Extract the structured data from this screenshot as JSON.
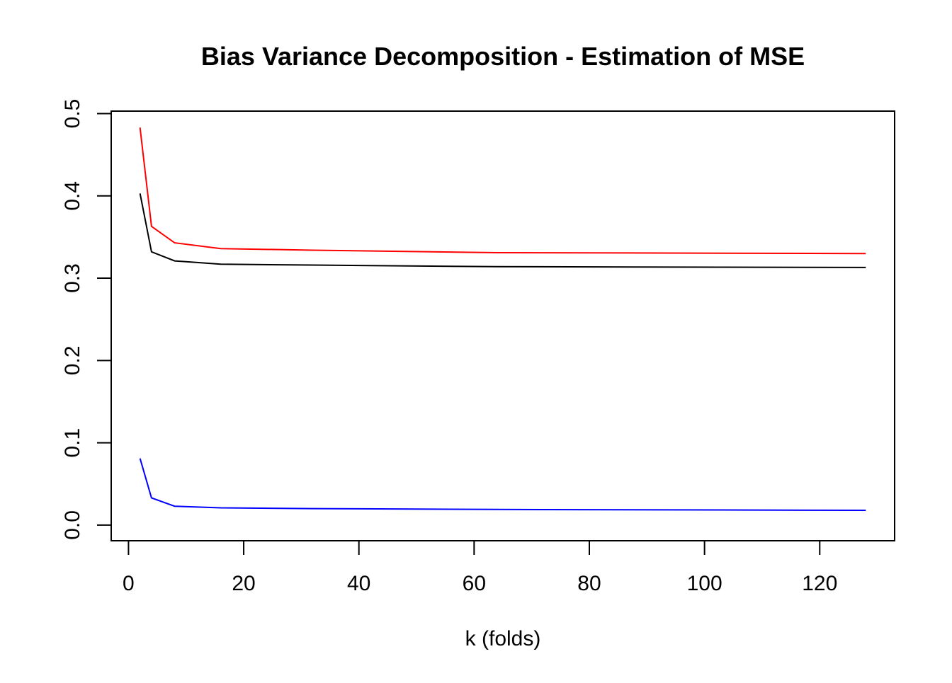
{
  "chart_data": {
    "type": "line",
    "title": "Bias Variance Decomposition - Estimation of MSE",
    "xlabel": "k (folds)",
    "ylabel": "",
    "xlim": [
      -3,
      133
    ],
    "ylim": [
      -0.019,
      0.503
    ],
    "xticks": [
      0,
      20,
      40,
      60,
      80,
      100,
      120
    ],
    "xtick_labels": [
      "0",
      "20",
      "40",
      "60",
      "80",
      "100",
      "120"
    ],
    "yticks": [
      0,
      0.1,
      0.2,
      0.3,
      0.4,
      0.5
    ],
    "ytick_labels": [
      "0.0",
      "0.1",
      "0.2",
      "0.3",
      "0.4",
      "0.5"
    ],
    "grid": false,
    "x": [
      2,
      4,
      8,
      16,
      32,
      64,
      128
    ],
    "series": [
      {
        "name": "red",
        "color": "#ff0000",
        "values": [
          0.483,
          0.363,
          0.343,
          0.336,
          0.334,
          0.331,
          0.33
        ]
      },
      {
        "name": "black",
        "color": "#000000",
        "values": [
          0.403,
          0.332,
          0.321,
          0.317,
          0.316,
          0.314,
          0.313
        ]
      },
      {
        "name": "blue",
        "color": "#0000ff",
        "values": [
          0.081,
          0.033,
          0.023,
          0.021,
          0.02,
          0.019,
          0.018
        ]
      }
    ]
  }
}
